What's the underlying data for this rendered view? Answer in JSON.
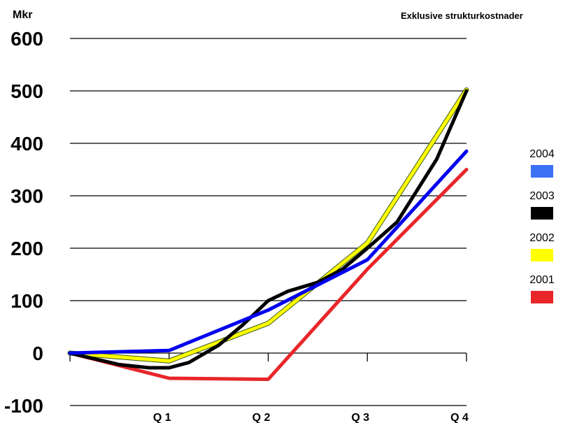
{
  "chart_data": {
    "type": "line",
    "y_unit": "Mkr",
    "subtitle": "Exklusive strukturkostnader",
    "categories": [
      "",
      "Q 1",
      "Q 2",
      "Q 3",
      "Q 4"
    ],
    "ylim": [
      -100,
      600
    ],
    "yticks": [
      600,
      500,
      400,
      300,
      200,
      100,
      0,
      -100
    ],
    "grid": true,
    "legend_position": "right",
    "series": [
      {
        "name": "2001",
        "color": "#e8262a",
        "x": [
          0,
          1,
          2,
          3,
          4
        ],
        "y": [
          0,
          -48,
          -50,
          160,
          350
        ]
      },
      {
        "name": "2002",
        "color": "#ffff00",
        "x": [
          0,
          1,
          2,
          3,
          4
        ],
        "y": [
          0,
          -15,
          57,
          210,
          502
        ]
      },
      {
        "name": "2003",
        "color": "#000000",
        "x": [
          0,
          0.5,
          0.8,
          1,
          1.2,
          1.5,
          1.75,
          2,
          2.2,
          2.5,
          2.75,
          3,
          3.3,
          3.7,
          4
        ],
        "y": [
          0,
          -22,
          -28,
          -28,
          -18,
          15,
          55,
          100,
          118,
          135,
          160,
          200,
          250,
          370,
          500
        ]
      },
      {
        "name": "2004",
        "color": "#0000ee",
        "x": [
          0,
          1,
          2,
          3,
          4
        ],
        "y": [
          0,
          5,
          82,
          178,
          385
        ]
      }
    ],
    "legend": [
      {
        "name": "2004",
        "color": "#3b6ff5"
      },
      {
        "name": "2003",
        "color": "#000000"
      },
      {
        "name": "2002",
        "color": "#ffff00"
      },
      {
        "name": "2001",
        "color": "#e8262a"
      }
    ]
  }
}
